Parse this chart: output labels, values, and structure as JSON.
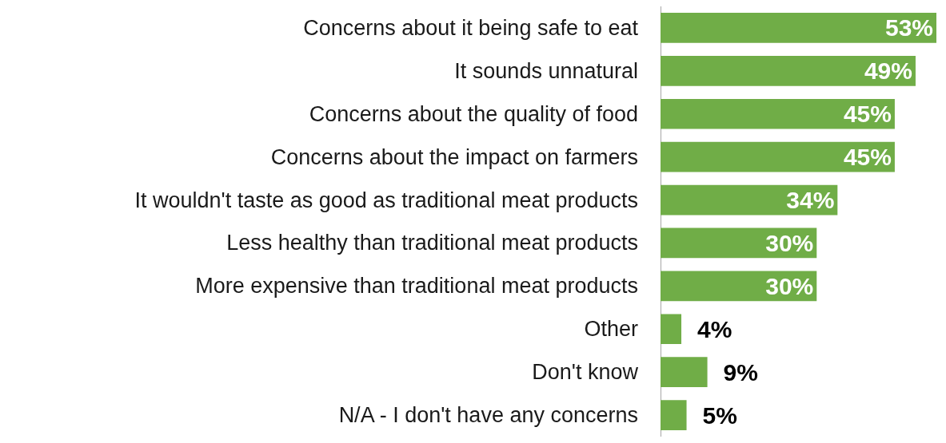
{
  "chart_data": {
    "type": "bar",
    "orientation": "horizontal",
    "tick_labels": "y",
    "categories": [
      "Concerns about it being safe to eat",
      "It sounds unnatural",
      "Concerns about the quality of food",
      "Concerns about the impact on farmers",
      "It wouldn't taste as good as traditional meat products",
      "Less healthy than traditional meat products",
      "More expensive than traditional meat products",
      "Other",
      "Don't know",
      "N/A - I don't have any concerns"
    ],
    "values": [
      53,
      49,
      45,
      45,
      34,
      30,
      30,
      4,
      9,
      5
    ],
    "value_labels": [
      "53%",
      "49%",
      "45%",
      "45%",
      "34%",
      "30%",
      "30%",
      "4%",
      "9%",
      "5%"
    ],
    "color": "#70ad47"
  }
}
